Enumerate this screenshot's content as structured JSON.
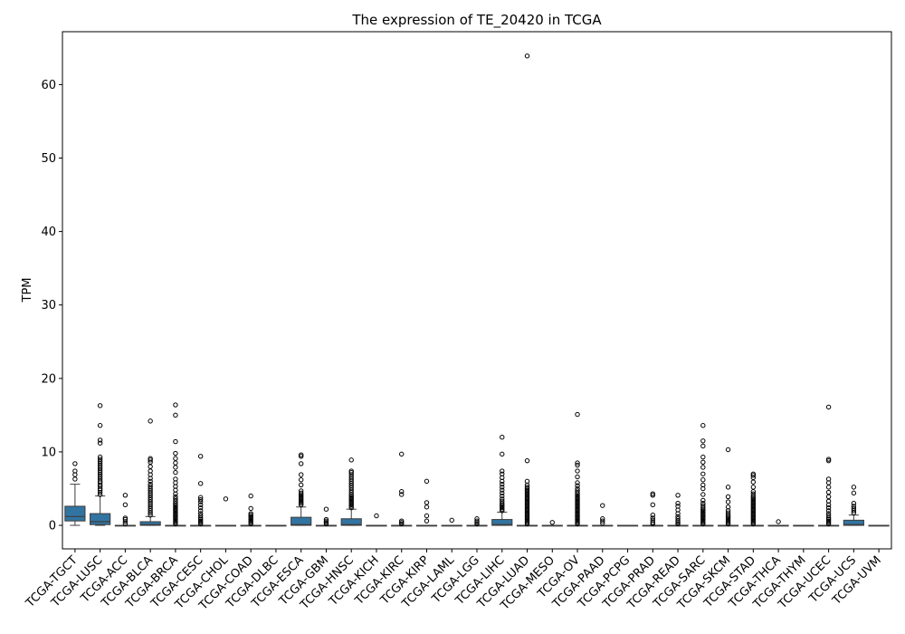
{
  "chart_data": {
    "type": "box",
    "title": "The expression of TE_20420 in TCGA",
    "xlabel": "",
    "ylabel": "TPM",
    "ylim": [
      -3.2,
      67.2
    ],
    "yticks": [
      0,
      10,
      20,
      30,
      40,
      50,
      60
    ],
    "grid": false,
    "legend": "none",
    "box_color": "#3274a1",
    "categories": [
      "TCGA-TGCT",
      "TCGA-LUSC",
      "TCGA-ACC",
      "TCGA-BLCA",
      "TCGA-BRCA",
      "TCGA-CESC",
      "TCGA-CHOL",
      "TCGA-COAD",
      "TCGA-DLBC",
      "TCGA-ESCA",
      "TCGA-GBM",
      "TCGA-HNSC",
      "TCGA-KICH",
      "TCGA-KIRC",
      "TCGA-KIRP",
      "TCGA-LAML",
      "TCGA-LGG",
      "TCGA-LIHC",
      "TCGA-LUAD",
      "TCGA-MESO",
      "TCGA-OV",
      "TCGA-PAAD",
      "TCGA-PCPG",
      "TCGA-PRAD",
      "TCGA-READ",
      "TCGA-SARC",
      "TCGA-SKCM",
      "TCGA-STAD",
      "TCGA-THCA",
      "TCGA-THYM",
      "TCGA-UCEC",
      "TCGA-UCS",
      "TCGA-UVM"
    ],
    "boxes": [
      {
        "whislo": 0,
        "q1": 0.6,
        "med": 1.2,
        "q3": 2.6,
        "whishi": 5.6,
        "fliers": [
          6.3,
          6.9,
          7.4,
          8.4
        ]
      },
      {
        "whislo": 0,
        "q1": 0.1,
        "med": 0.5,
        "q3": 1.6,
        "whishi": 4.0,
        "fliers": [
          4.2,
          4.5,
          4.8,
          5.0,
          5.3,
          5.5,
          5.8,
          6.0,
          6.3,
          6.6,
          6.9,
          7.2,
          7.5,
          7.8,
          8.1,
          8.4,
          8.7,
          9.0,
          9.3,
          11.2,
          11.6,
          13.6,
          16.3
        ]
      },
      {
        "whislo": 0,
        "q1": 0,
        "med": 0,
        "q3": 0,
        "whishi": 0,
        "fliers": [
          0.2,
          0.5,
          0.8,
          1.0,
          2.8,
          4.1
        ]
      },
      {
        "whislo": 0,
        "q1": 0,
        "med": 0.1,
        "q3": 0.5,
        "whishi": 1.2,
        "fliers": [
          1.4,
          1.7,
          2.0,
          2.3,
          2.6,
          2.9,
          3.2,
          3.5,
          3.8,
          4.1,
          4.4,
          4.7,
          5.0,
          5.3,
          5.6,
          6.0,
          6.4,
          6.9,
          7.4,
          8.0,
          8.6,
          8.9,
          9.1,
          14.2
        ]
      },
      {
        "whislo": 0,
        "q1": 0,
        "med": 0,
        "q3": 0,
        "whishi": 0,
        "fliers": [
          0.2,
          0.4,
          0.6,
          0.8,
          1.0,
          1.2,
          1.4,
          1.6,
          1.8,
          2.0,
          2.2,
          2.4,
          2.6,
          2.8,
          3.0,
          3.3,
          3.6,
          3.9,
          4.3,
          4.8,
          5.3,
          5.8,
          6.3,
          7.2,
          7.9,
          8.5,
          9.1,
          9.8,
          11.4,
          15.0,
          16.4
        ]
      },
      {
        "whislo": 0,
        "q1": 0,
        "med": 0,
        "q3": 0,
        "whishi": 0,
        "fliers": [
          0.2,
          0.4,
          0.6,
          0.8,
          1.0,
          1.3,
          1.6,
          2.0,
          2.4,
          2.8,
          3.2,
          3.5,
          3.8,
          5.7,
          9.4
        ]
      },
      {
        "whislo": 0,
        "q1": 0,
        "med": 0,
        "q3": 0,
        "whishi": 0,
        "fliers": [
          3.6
        ]
      },
      {
        "whislo": 0,
        "q1": 0,
        "med": 0,
        "q3": 0,
        "whishi": 0,
        "fliers": [
          0.2,
          0.4,
          0.6,
          0.8,
          1.0,
          1.2,
          1.4,
          1.6,
          2.3,
          4.0
        ]
      },
      {
        "whislo": 0,
        "q1": 0,
        "med": 0,
        "q3": 0,
        "whishi": 0,
        "fliers": []
      },
      {
        "whislo": 0,
        "q1": 0,
        "med": 0.1,
        "q3": 1.1,
        "whishi": 2.5,
        "fliers": [
          2.8,
          3.0,
          3.2,
          3.4,
          3.6,
          3.8,
          4.0,
          4.2,
          4.4,
          4.7,
          5.5,
          6.2,
          6.9,
          8.4,
          9.4,
          9.6
        ]
      },
      {
        "whislo": 0,
        "q1": 0,
        "med": 0,
        "q3": 0,
        "whishi": 0,
        "fliers": [
          0.2,
          0.4,
          0.6,
          0.8,
          2.2
        ]
      },
      {
        "whislo": 0,
        "q1": 0,
        "med": 0.1,
        "q3": 0.9,
        "whishi": 2.2,
        "fliers": [
          2.4,
          2.6,
          2.8,
          3.0,
          3.2,
          3.4,
          3.6,
          3.8,
          4.0,
          4.2,
          4.5,
          4.8,
          5.1,
          5.4,
          5.7,
          6.0,
          6.3,
          6.6,
          6.9,
          7.2,
          7.4,
          8.9
        ]
      },
      {
        "whislo": 0,
        "q1": 0,
        "med": 0,
        "q3": 0,
        "whishi": 0,
        "fliers": [
          1.3
        ]
      },
      {
        "whislo": 0,
        "q1": 0,
        "med": 0,
        "q3": 0,
        "whishi": 0,
        "fliers": [
          0.2,
          0.4,
          0.6,
          4.2,
          4.6,
          9.7
        ]
      },
      {
        "whislo": 0,
        "q1": 0,
        "med": 0,
        "q3": 0,
        "whishi": 0,
        "fliers": [
          0.6,
          1.3,
          2.5,
          3.1,
          6.0
        ]
      },
      {
        "whislo": 0,
        "q1": 0,
        "med": 0,
        "q3": 0,
        "whishi": 0,
        "fliers": [
          0.7
        ]
      },
      {
        "whislo": 0,
        "q1": 0,
        "med": 0,
        "q3": 0,
        "whishi": 0,
        "fliers": [
          0.2,
          0.4,
          0.6,
          0.9
        ]
      },
      {
        "whislo": 0,
        "q1": 0,
        "med": 0.1,
        "q3": 0.8,
        "whishi": 1.8,
        "fliers": [
          2.0,
          2.2,
          2.4,
          2.6,
          2.8,
          3.0,
          3.3,
          3.6,
          4.0,
          4.4,
          4.8,
          5.2,
          5.6,
          6.0,
          6.5,
          7.0,
          7.4,
          9.7,
          12.0
        ]
      },
      {
        "whislo": 0,
        "q1": 0,
        "med": 0,
        "q3": 0,
        "whishi": 0,
        "fliers": [
          0.2,
          0.4,
          0.6,
          0.8,
          1.0,
          1.2,
          1.4,
          1.6,
          1.8,
          2.0,
          2.2,
          2.4,
          2.6,
          2.8,
          3.0,
          3.2,
          3.4,
          3.6,
          3.8,
          4.0,
          4.2,
          4.4,
          4.6,
          4.8,
          5.0,
          5.2,
          5.5,
          6.0,
          8.8,
          63.9
        ]
      },
      {
        "whislo": 0,
        "q1": 0,
        "med": 0,
        "q3": 0,
        "whishi": 0,
        "fliers": [
          0.4
        ]
      },
      {
        "whislo": 0,
        "q1": 0,
        "med": 0,
        "q3": 0,
        "whishi": 0,
        "fliers": [
          0.2,
          0.4,
          0.6,
          0.8,
          1.0,
          1.2,
          1.4,
          1.6,
          1.8,
          2.0,
          2.2,
          2.4,
          2.6,
          2.8,
          3.0,
          3.2,
          3.4,
          3.6,
          3.8,
          4.0,
          4.2,
          4.4,
          4.7,
          5.0,
          5.4,
          5.8,
          6.6,
          7.4,
          8.2,
          8.5,
          15.1
        ]
      },
      {
        "whislo": 0,
        "q1": 0,
        "med": 0,
        "q3": 0,
        "whishi": 0,
        "fliers": [
          0.3,
          0.6,
          0.9,
          2.7
        ]
      },
      {
        "whislo": 0,
        "q1": 0,
        "med": 0,
        "q3": 0,
        "whishi": 0,
        "fliers": []
      },
      {
        "whislo": 0,
        "q1": 0,
        "med": 0,
        "q3": 0,
        "whishi": 0,
        "fliers": [
          0.2,
          0.4,
          0.7,
          1.0,
          1.4,
          2.8,
          4.1,
          4.3
        ]
      },
      {
        "whislo": 0,
        "q1": 0,
        "med": 0,
        "q3": 0,
        "whishi": 0,
        "fliers": [
          0.2,
          0.4,
          0.6,
          0.9,
          1.2,
          1.6,
          2.1,
          2.6,
          3.0,
          4.1
        ]
      },
      {
        "whislo": 0,
        "q1": 0,
        "med": 0,
        "q3": 0,
        "whishi": 0,
        "fliers": [
          0.2,
          0.4,
          0.6,
          0.8,
          1.0,
          1.2,
          1.4,
          1.6,
          1.8,
          2.0,
          2.2,
          2.4,
          2.7,
          3.0,
          3.4,
          4.2,
          5.0,
          5.5,
          6.2,
          7.0,
          7.9,
          8.6,
          9.3,
          10.8,
          11.5,
          13.6
        ]
      },
      {
        "whislo": 0,
        "q1": 0,
        "med": 0,
        "q3": 0,
        "whishi": 0,
        "fliers": [
          0.2,
          0.4,
          0.6,
          0.8,
          1.0,
          1.2,
          1.4,
          1.7,
          2.0,
          2.5,
          3.2,
          3.9,
          5.2,
          10.3
        ]
      },
      {
        "whislo": 0,
        "q1": 0,
        "med": 0,
        "q3": 0,
        "whishi": 0,
        "fliers": [
          0.2,
          0.4,
          0.6,
          0.8,
          1.0,
          1.2,
          1.4,
          1.6,
          1.8,
          2.0,
          2.2,
          2.4,
          2.6,
          2.8,
          3.0,
          3.2,
          3.4,
          3.6,
          3.8,
          4.0,
          4.3,
          4.6,
          5.2,
          5.9,
          6.5,
          6.8,
          7.0
        ]
      },
      {
        "whislo": 0,
        "q1": 0,
        "med": 0,
        "q3": 0,
        "whishi": 0,
        "fliers": [
          0.5
        ]
      },
      {
        "whislo": 0,
        "q1": 0,
        "med": 0,
        "q3": 0,
        "whishi": 0,
        "fliers": []
      },
      {
        "whislo": 0,
        "q1": 0,
        "med": 0,
        "q3": 0,
        "whishi": 0,
        "fliers": [
          0.2,
          0.4,
          0.6,
          0.8,
          1.0,
          1.3,
          1.6,
          2.0,
          2.4,
          2.8,
          3.3,
          3.9,
          4.5,
          5.2,
          5.8,
          6.3,
          8.8,
          9.0,
          16.1
        ]
      },
      {
        "whislo": 0,
        "q1": 0,
        "med": 0.1,
        "q3": 0.7,
        "whishi": 1.4,
        "fliers": [
          1.7,
          2.0,
          2.3,
          2.6,
          3.0,
          4.4,
          5.2
        ]
      },
      {
        "whislo": 0,
        "q1": 0,
        "med": 0,
        "q3": 0,
        "whishi": 0,
        "fliers": []
      }
    ]
  }
}
